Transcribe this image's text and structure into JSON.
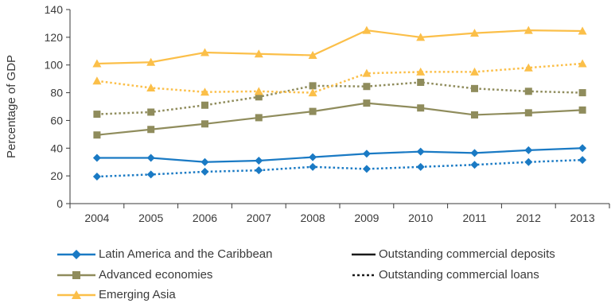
{
  "chart_data": {
    "type": "line",
    "x": [
      "2004",
      "2005",
      "2006",
      "2007",
      "2008",
      "2009",
      "2010",
      "2011",
      "2012",
      "2013"
    ],
    "ylabel": "Percentage of GDP",
    "xlabel": "",
    "ylim": [
      0,
      140
    ],
    "yticks": [
      "0",
      "20",
      "40",
      "60",
      "80",
      "100",
      "120",
      "140"
    ],
    "grid": false,
    "legend_position": "bottom",
    "series": [
      {
        "region": "Latin America and the Caribbean",
        "metric": "Outstanding commercial deposits",
        "color": "#1a7ac4",
        "marker": "diamond",
        "line": "solid",
        "values": [
          33,
          33,
          30,
          31,
          33.5,
          36,
          37.5,
          36.5,
          38.5,
          40
        ]
      },
      {
        "region": "Latin America and the Caribbean",
        "metric": "Outstanding commercial loans",
        "color": "#1a7ac4",
        "marker": "diamond",
        "line": "dotted",
        "values": [
          19.5,
          21,
          23,
          24,
          26.5,
          25,
          26.5,
          28,
          30,
          31.5
        ]
      },
      {
        "region": "Advanced economies",
        "metric": "Outstanding commercial deposits",
        "color": "#8f8c5c",
        "marker": "square",
        "line": "solid",
        "values": [
          49.5,
          53.5,
          57.5,
          62,
          66.5,
          72.5,
          69,
          64,
          65.5,
          67.5
        ]
      },
      {
        "region": "Advanced economies",
        "metric": "Outstanding commercial loans",
        "color": "#8f8c5c",
        "marker": "square",
        "line": "dotted",
        "values": [
          64.5,
          66,
          71,
          77,
          85,
          84.5,
          87.5,
          83,
          81,
          80
        ]
      },
      {
        "region": "Emerging Asia",
        "metric": "Outstanding commercial deposits",
        "color": "#fbbf49",
        "marker": "triangle",
        "line": "solid",
        "values": [
          101,
          102,
          109,
          108,
          107,
          125,
          120,
          123,
          125,
          124.5
        ]
      },
      {
        "region": "Emerging Asia",
        "metric": "Outstanding commercial loans",
        "color": "#fbbf49",
        "marker": "triangle",
        "line": "dotted",
        "values": [
          88.5,
          83.5,
          80.5,
          81,
          80,
          94,
          95,
          95,
          98,
          101
        ]
      }
    ]
  },
  "legend": {
    "regions": [
      {
        "label": "Latin America and the Caribbean",
        "color": "#1a7ac4",
        "marker": "diamond"
      },
      {
        "label": "Advanced economies",
        "color": "#8f8c5c",
        "marker": "square"
      },
      {
        "label": "Emerging Asia",
        "color": "#fbbf49",
        "marker": "triangle"
      }
    ],
    "styles": [
      {
        "label": "Outstanding commercial deposits",
        "line": "solid"
      },
      {
        "label": "Outstanding commercial loans",
        "line": "dotted"
      }
    ]
  }
}
